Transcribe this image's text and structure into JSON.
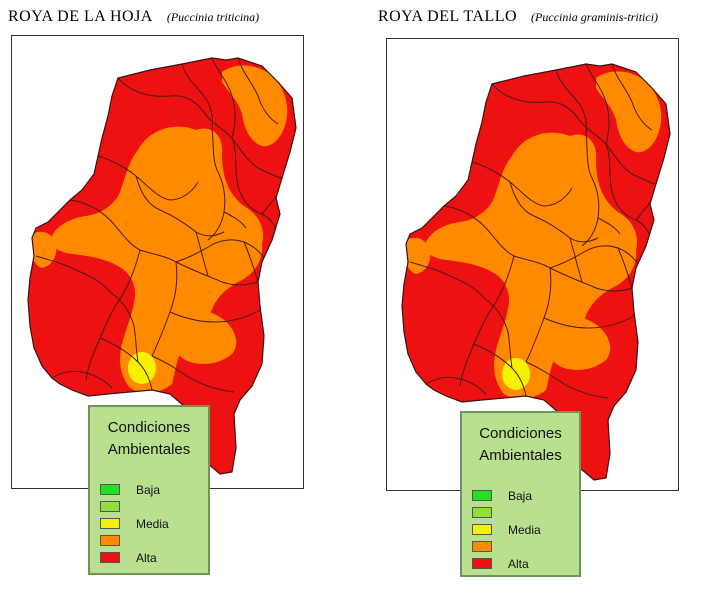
{
  "maps": [
    {
      "title": "ROYA DE LA HOJA",
      "scientific_name": "(Puccinia triticina)"
    },
    {
      "title": "ROYA DEL TALLO",
      "scientific_name": "(Puccinia graminis-tritici)"
    }
  ],
  "legend": {
    "title_line1": "Condiciones",
    "title_line2": "Ambientales",
    "items": [
      {
        "label": "Baja",
        "color": "#22e022"
      },
      {
        "label": "",
        "color": "#8ee03a"
      },
      {
        "label": "Media",
        "color": "#f5f200"
      },
      {
        "label": "",
        "color": "#ff8a00"
      },
      {
        "label": "Alta",
        "color": "#ee1111"
      }
    ]
  },
  "colors": {
    "alta": "#ee1111",
    "orange": "#ff8a00",
    "media": "#f5f200",
    "border": "#4a1a1a"
  }
}
